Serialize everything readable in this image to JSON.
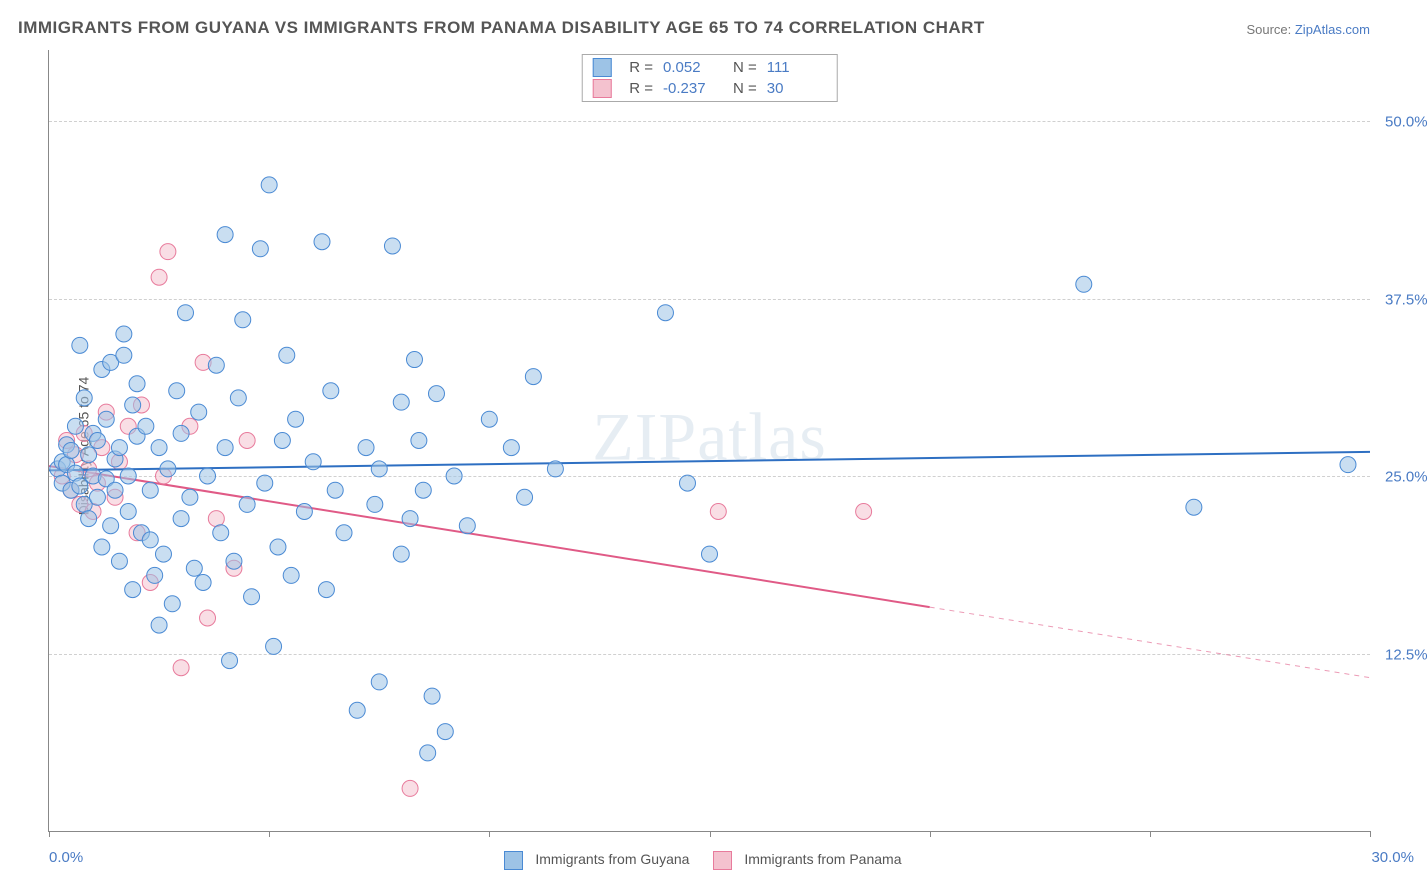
{
  "title": "IMMIGRANTS FROM GUYANA VS IMMIGRANTS FROM PANAMA DISABILITY AGE 65 TO 74 CORRELATION CHART",
  "source_label": "Source: ",
  "source_name": "ZipAtlas.com",
  "watermark": "ZIPatlas",
  "y_axis_label": "Disability Age 65 to 74",
  "chart": {
    "type": "scatter-correlation",
    "xlim": [
      0,
      30
    ],
    "ylim": [
      0,
      55
    ],
    "x_ticks": [
      0,
      5,
      10,
      15,
      20,
      25,
      30
    ],
    "y_gridlines": [
      12.5,
      25.0,
      37.5,
      50.0
    ],
    "y_tick_labels": [
      "12.5%",
      "25.0%",
      "37.5%",
      "50.0%"
    ],
    "x_min_label": "0.0%",
    "x_max_label": "30.0%",
    "background_color": "#ffffff",
    "grid_color": "#d0d0d0",
    "axis_color": "#888888",
    "marker_radius": 8,
    "marker_opacity": 0.55,
    "line_width": 2
  },
  "series": {
    "guyana": {
      "label": "Immigrants from Guyana",
      "fill_color": "#9dc3e6",
      "stroke_color": "#4a8ad4",
      "line_color": "#2e6fc2",
      "R": "0.052",
      "N": "111",
      "trend": {
        "y_at_x0": 25.4,
        "y_at_xmax": 26.7,
        "solid_to_x": 30
      },
      "points": [
        [
          0.2,
          25.5
        ],
        [
          0.3,
          24.5
        ],
        [
          0.3,
          26.0
        ],
        [
          0.4,
          25.8
        ],
        [
          0.4,
          27.2
        ],
        [
          0.5,
          24.0
        ],
        [
          0.5,
          26.8
        ],
        [
          0.6,
          25.2
        ],
        [
          0.6,
          28.5
        ],
        [
          0.7,
          24.3
        ],
        [
          0.7,
          34.2
        ],
        [
          0.8,
          23.0
        ],
        [
          0.8,
          30.5
        ],
        [
          0.9,
          26.5
        ],
        [
          0.9,
          22.0
        ],
        [
          1.0,
          25.0
        ],
        [
          1.0,
          28.0
        ],
        [
          1.1,
          27.5
        ],
        [
          1.1,
          23.5
        ],
        [
          1.2,
          32.5
        ],
        [
          1.2,
          20.0
        ],
        [
          1.3,
          24.8
        ],
        [
          1.3,
          29.0
        ],
        [
          1.4,
          21.5
        ],
        [
          1.4,
          33.0
        ],
        [
          1.5,
          24.0
        ],
        [
          1.5,
          26.2
        ],
        [
          1.6,
          19.0
        ],
        [
          1.6,
          27.0
        ],
        [
          1.7,
          35.0
        ],
        [
          1.7,
          33.5
        ],
        [
          1.8,
          22.5
        ],
        [
          1.8,
          25.0
        ],
        [
          1.9,
          17.0
        ],
        [
          1.9,
          30.0
        ],
        [
          2.0,
          31.5
        ],
        [
          2.0,
          27.8
        ],
        [
          2.1,
          21.0
        ],
        [
          2.2,
          28.5
        ],
        [
          2.3,
          20.5
        ],
        [
          2.3,
          24.0
        ],
        [
          2.4,
          18.0
        ],
        [
          2.5,
          27.0
        ],
        [
          2.5,
          14.5
        ],
        [
          2.6,
          19.5
        ],
        [
          2.7,
          25.5
        ],
        [
          2.8,
          16.0
        ],
        [
          2.9,
          31.0
        ],
        [
          3.0,
          22.0
        ],
        [
          3.0,
          28.0
        ],
        [
          3.1,
          36.5
        ],
        [
          3.2,
          23.5
        ],
        [
          3.3,
          18.5
        ],
        [
          3.4,
          29.5
        ],
        [
          3.5,
          17.5
        ],
        [
          3.6,
          25.0
        ],
        [
          3.8,
          32.8
        ],
        [
          3.9,
          21.0
        ],
        [
          4.0,
          27.0
        ],
        [
          4.0,
          42.0
        ],
        [
          4.1,
          12.0
        ],
        [
          4.2,
          19.0
        ],
        [
          4.3,
          30.5
        ],
        [
          4.4,
          36.0
        ],
        [
          4.5,
          23.0
        ],
        [
          4.6,
          16.5
        ],
        [
          4.8,
          41.0
        ],
        [
          4.9,
          24.5
        ],
        [
          5.0,
          45.5
        ],
        [
          5.1,
          13.0
        ],
        [
          5.2,
          20.0
        ],
        [
          5.3,
          27.5
        ],
        [
          5.4,
          33.5
        ],
        [
          5.5,
          18.0
        ],
        [
          5.6,
          29.0
        ],
        [
          5.8,
          22.5
        ],
        [
          6.0,
          26.0
        ],
        [
          6.2,
          41.5
        ],
        [
          6.3,
          17.0
        ],
        [
          6.4,
          31.0
        ],
        [
          6.5,
          24.0
        ],
        [
          6.7,
          21.0
        ],
        [
          7.0,
          8.5
        ],
        [
          7.2,
          27.0
        ],
        [
          7.4,
          23.0
        ],
        [
          7.5,
          25.5
        ],
        [
          7.5,
          10.5
        ],
        [
          7.8,
          41.2
        ],
        [
          8.0,
          19.5
        ],
        [
          8.0,
          30.2
        ],
        [
          8.2,
          22.0
        ],
        [
          8.3,
          33.2
        ],
        [
          8.4,
          27.5
        ],
        [
          8.5,
          24.0
        ],
        [
          8.6,
          5.5
        ],
        [
          8.7,
          9.5
        ],
        [
          8.8,
          30.8
        ],
        [
          9.0,
          7.0
        ],
        [
          9.2,
          25.0
        ],
        [
          9.5,
          21.5
        ],
        [
          10.0,
          29.0
        ],
        [
          10.5,
          27.0
        ],
        [
          10.8,
          23.5
        ],
        [
          11.0,
          32.0
        ],
        [
          11.5,
          25.5
        ],
        [
          14.0,
          36.5
        ],
        [
          14.5,
          24.5
        ],
        [
          15.0,
          19.5
        ],
        [
          23.5,
          38.5
        ],
        [
          26.0,
          22.8
        ],
        [
          29.5,
          25.8
        ]
      ]
    },
    "panama": {
      "label": "Immigrants from Panama",
      "fill_color": "#f4c2cf",
      "stroke_color": "#e87b9c",
      "line_color": "#e05a86",
      "R": "-0.237",
      "N": "30",
      "trend": {
        "y_at_x0": 25.7,
        "y_at_xmax": 10.8,
        "solid_to_x": 20
      },
      "points": [
        [
          0.3,
          25.0
        ],
        [
          0.4,
          27.5
        ],
        [
          0.5,
          24.0
        ],
        [
          0.6,
          26.5
        ],
        [
          0.7,
          23.0
        ],
        [
          0.8,
          28.0
        ],
        [
          0.9,
          25.5
        ],
        [
          1.0,
          22.5
        ],
        [
          1.1,
          24.5
        ],
        [
          1.2,
          27.0
        ],
        [
          1.3,
          29.5
        ],
        [
          1.5,
          23.5
        ],
        [
          1.6,
          26.0
        ],
        [
          1.8,
          28.5
        ],
        [
          2.0,
          21.0
        ],
        [
          2.1,
          30.0
        ],
        [
          2.3,
          17.5
        ],
        [
          2.5,
          39.0
        ],
        [
          2.6,
          25.0
        ],
        [
          2.7,
          40.8
        ],
        [
          3.0,
          11.5
        ],
        [
          3.2,
          28.5
        ],
        [
          3.5,
          33.0
        ],
        [
          3.6,
          15.0
        ],
        [
          3.8,
          22.0
        ],
        [
          4.2,
          18.5
        ],
        [
          4.5,
          27.5
        ],
        [
          8.2,
          3.0
        ],
        [
          15.2,
          22.5
        ],
        [
          18.5,
          22.5
        ]
      ]
    }
  },
  "top_legend": {
    "R_label": "R =",
    "N_label": "N ="
  }
}
